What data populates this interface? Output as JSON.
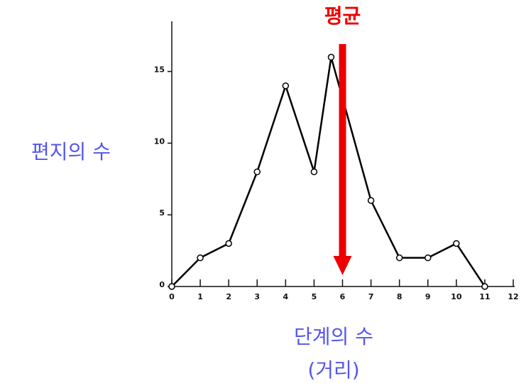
{
  "chart_data": {
    "type": "line",
    "ylabel": "편지의 수",
    "xlabel": [
      "단계의 수",
      "(거리)"
    ],
    "x": [
      0,
      1,
      2,
      3,
      4,
      5,
      5.6,
      7,
      8,
      9,
      10,
      11
    ],
    "series": [
      {
        "color": "#000000",
        "values": [
          0,
          2,
          3,
          8,
          14,
          8,
          16,
          6,
          2,
          2,
          3,
          0
        ]
      }
    ],
    "xlim": [
      0,
      12
    ],
    "xticks": [
      0,
      1,
      2,
      3,
      4,
      5,
      6,
      7,
      8,
      9,
      10,
      11,
      12
    ],
    "ylim": [
      0,
      18.5
    ],
    "yticks": [
      0,
      5,
      10,
      15
    ],
    "annotations": [
      {
        "text": "평균",
        "x": 6,
        "color": "#ee0000"
      }
    ]
  }
}
